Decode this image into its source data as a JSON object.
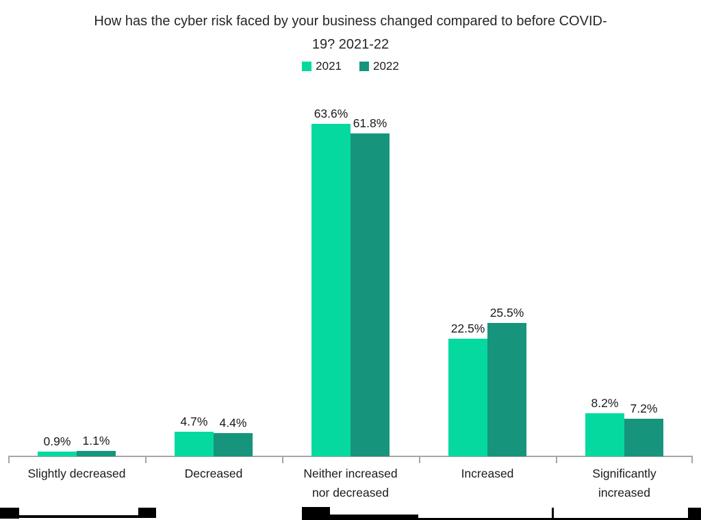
{
  "header": {
    "title_lines": [
      "How has the cyber risk faced by your business changed compared to before COVID-",
      "19? 2021-22"
    ]
  },
  "chart_data": {
    "type": "bar",
    "title": "How has the cyber risk faced by your business changed compared to before COVID-19? 2021-22",
    "categories": [
      "Slightly decreased",
      "Decreased",
      "Neither increased\nnor decreased",
      "Increased",
      "Significantly\nincreased"
    ],
    "series": [
      {
        "name": "2021",
        "color": "#05d9a0",
        "values": [
          0.9,
          4.7,
          63.6,
          22.5,
          8.2
        ],
        "value_labels": [
          "0.9%",
          "4.7%",
          "63.6%",
          "22.5%",
          "8.2%"
        ]
      },
      {
        "name": "2022",
        "color": "#16957c",
        "values": [
          1.1,
          4.4,
          61.8,
          25.5,
          7.2
        ],
        "value_labels": [
          "1.1%",
          "4.4%",
          "61.8%",
          "25.5%",
          "7.2%"
        ]
      }
    ],
    "xlabel": "",
    "ylabel": "",
    "ylim": [
      0,
      70
    ],
    "grid": false,
    "y_axis_visible": false,
    "data_labels_visible": true,
    "legend_position": "top-center"
  },
  "style": {
    "axis_color": "#a6a6a6",
    "text_color": "#1a1a1a",
    "background": "#ffffff"
  }
}
